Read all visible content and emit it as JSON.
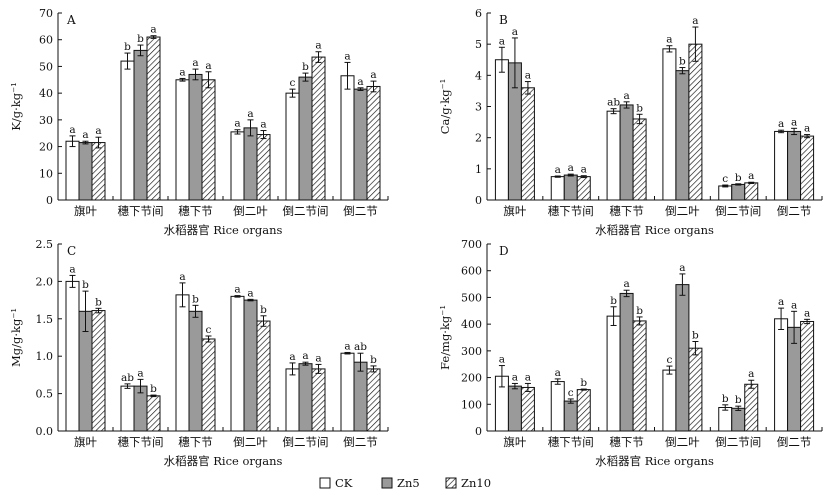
{
  "legend": {
    "items": [
      {
        "name": "CK",
        "pattern": "white"
      },
      {
        "name": "Zn5",
        "pattern": "gray"
      },
      {
        "name": "Zn10",
        "pattern": "hatch"
      }
    ]
  },
  "colors": {
    "bar_gray": "#9a9a9a",
    "bar_white": "#ffffff",
    "stroke": "#111111"
  },
  "chart_data": [
    {
      "type": "bar",
      "panel": "A",
      "ylabel": "K/g·kg⁻¹",
      "xlabel": "水稻器官 Rice organs",
      "ylim": [
        0,
        70
      ],
      "yticks": [
        0,
        10,
        20,
        30,
        40,
        50,
        60,
        70
      ],
      "categories": [
        "旗叶",
        "穗下节间",
        "穗下节",
        "倒二叶",
        "倒二节间",
        "倒二节"
      ],
      "series": [
        {
          "name": "CK",
          "values": [
            22,
            52,
            45,
            25.5,
            40,
            46.5
          ],
          "errors": [
            2,
            3,
            0.5,
            0.8,
            1.5,
            5
          ],
          "letters": [
            "a",
            "b",
            "a",
            "a",
            "c",
            "a"
          ]
        },
        {
          "name": "Zn5",
          "values": [
            21.5,
            56,
            47,
            27,
            46,
            41.5
          ],
          "errors": [
            0.5,
            2,
            2,
            3,
            1.5,
            0.5
          ],
          "letters": [
            "a",
            "b",
            "a",
            "a",
            "b",
            "a"
          ]
        },
        {
          "name": "Zn10",
          "values": [
            21.5,
            61,
            45,
            24.5,
            53.5,
            42.5
          ],
          "errors": [
            2,
            0.5,
            3,
            1.5,
            2,
            2
          ],
          "letters": [
            "a",
            "a",
            "a",
            "a",
            "a",
            "a"
          ]
        }
      ]
    },
    {
      "type": "bar",
      "panel": "B",
      "ylabel": "Ca/g·kg⁻¹",
      "xlabel": "水稻器官 Rice organs",
      "ylim": [
        0,
        6
      ],
      "yticks": [
        0,
        1,
        2,
        3,
        4,
        5,
        6
      ],
      "categories": [
        "旗叶",
        "穗下节间",
        "穗下节",
        "倒二叶",
        "倒二节间",
        "倒二节"
      ],
      "series": [
        {
          "name": "CK",
          "values": [
            4.5,
            0.75,
            2.85,
            4.85,
            0.45,
            2.2
          ],
          "errors": [
            0.4,
            0.02,
            0.08,
            0.1,
            0.03,
            0.04
          ],
          "letters": [
            "a",
            "a",
            "ab",
            "a",
            "c",
            "a"
          ]
        },
        {
          "name": "Zn5",
          "values": [
            4.4,
            0.8,
            3.05,
            4.15,
            0.5,
            2.2
          ],
          "errors": [
            0.8,
            0.03,
            0.1,
            0.1,
            0.02,
            0.1
          ],
          "letters": [
            "a",
            "a",
            "a",
            "b",
            "b",
            "a"
          ]
        },
        {
          "name": "Zn10",
          "values": [
            3.6,
            0.75,
            2.6,
            5.0,
            0.55,
            2.05
          ],
          "errors": [
            0.2,
            0.03,
            0.15,
            0.55,
            0.02,
            0.05
          ],
          "letters": [
            "a",
            "a",
            "b",
            "a",
            "a",
            "a"
          ]
        }
      ]
    },
    {
      "type": "bar",
      "panel": "C",
      "ylabel": "Mg/g·kg⁻¹",
      "xlabel": "水稻器官 Rice organs",
      "ylim": [
        0,
        2.5
      ],
      "yticks": [
        0,
        0.5,
        1.0,
        1.5,
        2.0,
        2.5
      ],
      "categories": [
        "旗叶",
        "穗下节间",
        "穗下节",
        "倒二叶",
        "倒二节间",
        "倒二节"
      ],
      "series": [
        {
          "name": "CK",
          "values": [
            2.0,
            0.6,
            1.82,
            1.8,
            0.83,
            1.04
          ],
          "errors": [
            0.08,
            0.03,
            0.16,
            0.01,
            0.08,
            0.01
          ],
          "letters": [
            "a",
            "ab",
            "a",
            "a",
            "a",
            "a"
          ]
        },
        {
          "name": "Zn5",
          "values": [
            1.6,
            0.6,
            1.6,
            1.75,
            0.9,
            0.92
          ],
          "errors": [
            0.27,
            0.09,
            0.08,
            0.01,
            0.02,
            0.12
          ],
          "letters": [
            "b",
            "a",
            "b",
            "a",
            "a",
            "ab"
          ]
        },
        {
          "name": "Zn10",
          "values": [
            1.61,
            0.47,
            1.23,
            1.47,
            0.83,
            0.83
          ],
          "errors": [
            0.03,
            0.01,
            0.04,
            0.07,
            0.06,
            0.04
          ],
          "letters": [
            "b",
            "b",
            "c",
            "b",
            "a",
            "b"
          ]
        }
      ]
    },
    {
      "type": "bar",
      "panel": "D",
      "ylabel": "Fe/mg·kg⁻¹",
      "xlabel": "水稻器官 Rice organs",
      "ylim": [
        0,
        700
      ],
      "yticks": [
        0,
        100,
        200,
        300,
        400,
        500,
        600,
        700
      ],
      "categories": [
        "旗叶",
        "穗下节间",
        "穗下节",
        "倒二叶",
        "倒二节间",
        "倒二节"
      ],
      "series": [
        {
          "name": "CK",
          "values": [
            205,
            185,
            430,
            228,
            88,
            420
          ],
          "errors": [
            40,
            10,
            35,
            15,
            10,
            40
          ],
          "letters": [
            "a",
            "a",
            "b",
            "c",
            "b",
            "a"
          ]
        },
        {
          "name": "Zn5",
          "values": [
            168,
            112,
            515,
            548,
            85,
            388
          ],
          "errors": [
            10,
            8,
            12,
            40,
            8,
            60
          ],
          "letters": [
            "a",
            "c",
            "a",
            "a",
            "b",
            "a"
          ]
        },
        {
          "name": "Zn10",
          "values": [
            163,
            155,
            412,
            310,
            175,
            410
          ],
          "errors": [
            15,
            2,
            15,
            25,
            15,
            8
          ],
          "letters": [
            "a",
            "b",
            "b",
            "b",
            "a",
            "a"
          ]
        }
      ]
    }
  ]
}
